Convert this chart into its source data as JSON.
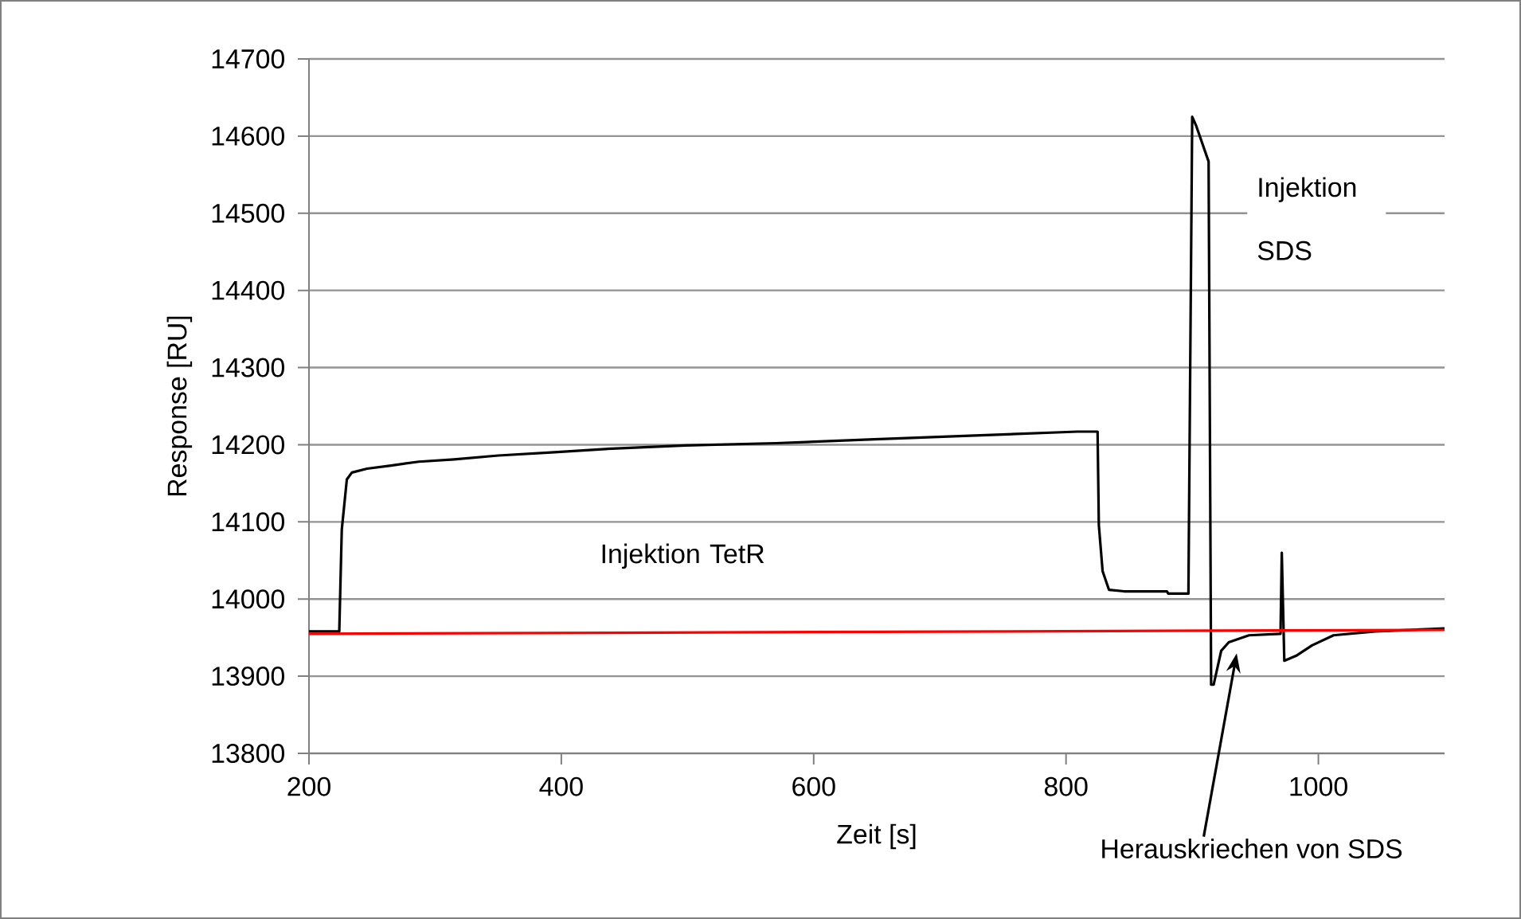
{
  "chart_data": {
    "type": "line",
    "xlabel": "Zeit [s]",
    "ylabel": "Response [RU]",
    "xlim": [
      200,
      1100
    ],
    "xticks": [
      200,
      400,
      600,
      800,
      1000
    ],
    "ylim": [
      13800,
      14700
    ],
    "yticks": [
      13800,
      13900,
      14000,
      14100,
      14200,
      14300,
      14400,
      14500,
      14600,
      14700
    ],
    "grid": "y",
    "series": [
      {
        "color": "#000000",
        "x": [
          200,
          224,
          226,
          230,
          234,
          246,
          265,
          287,
          315,
          350,
          392,
          440,
          498,
          570,
          648,
          728,
          809,
          825,
          826,
          829,
          834,
          846,
          880,
          881,
          897,
          900,
          903,
          913,
          915,
          917,
          923,
          929,
          945,
          970,
          971,
          973,
          983,
          995,
          1012,
          1045,
          1100
        ],
        "values": [
          13958,
          13958,
          14090,
          14155,
          14164,
          14169,
          14173,
          14178,
          14181,
          14186,
          14190,
          14195,
          14199,
          14202,
          14207,
          14212,
          14217,
          14217,
          14096,
          14036,
          14012,
          14010,
          14010,
          14007,
          14007,
          14625,
          14614,
          14567,
          13889,
          13889,
          13933,
          13944,
          13953,
          13955,
          14060,
          13920,
          13927,
          13940,
          13953,
          13958,
          13962
        ]
      },
      {
        "color": "#ff0000",
        "x": [
          200,
          1100
        ],
        "values": [
          13955,
          13960
        ]
      }
    ],
    "annotations": [
      "Injektion TetR",
      "Injektion SDS",
      "Herauskriechen von SDS"
    ]
  }
}
